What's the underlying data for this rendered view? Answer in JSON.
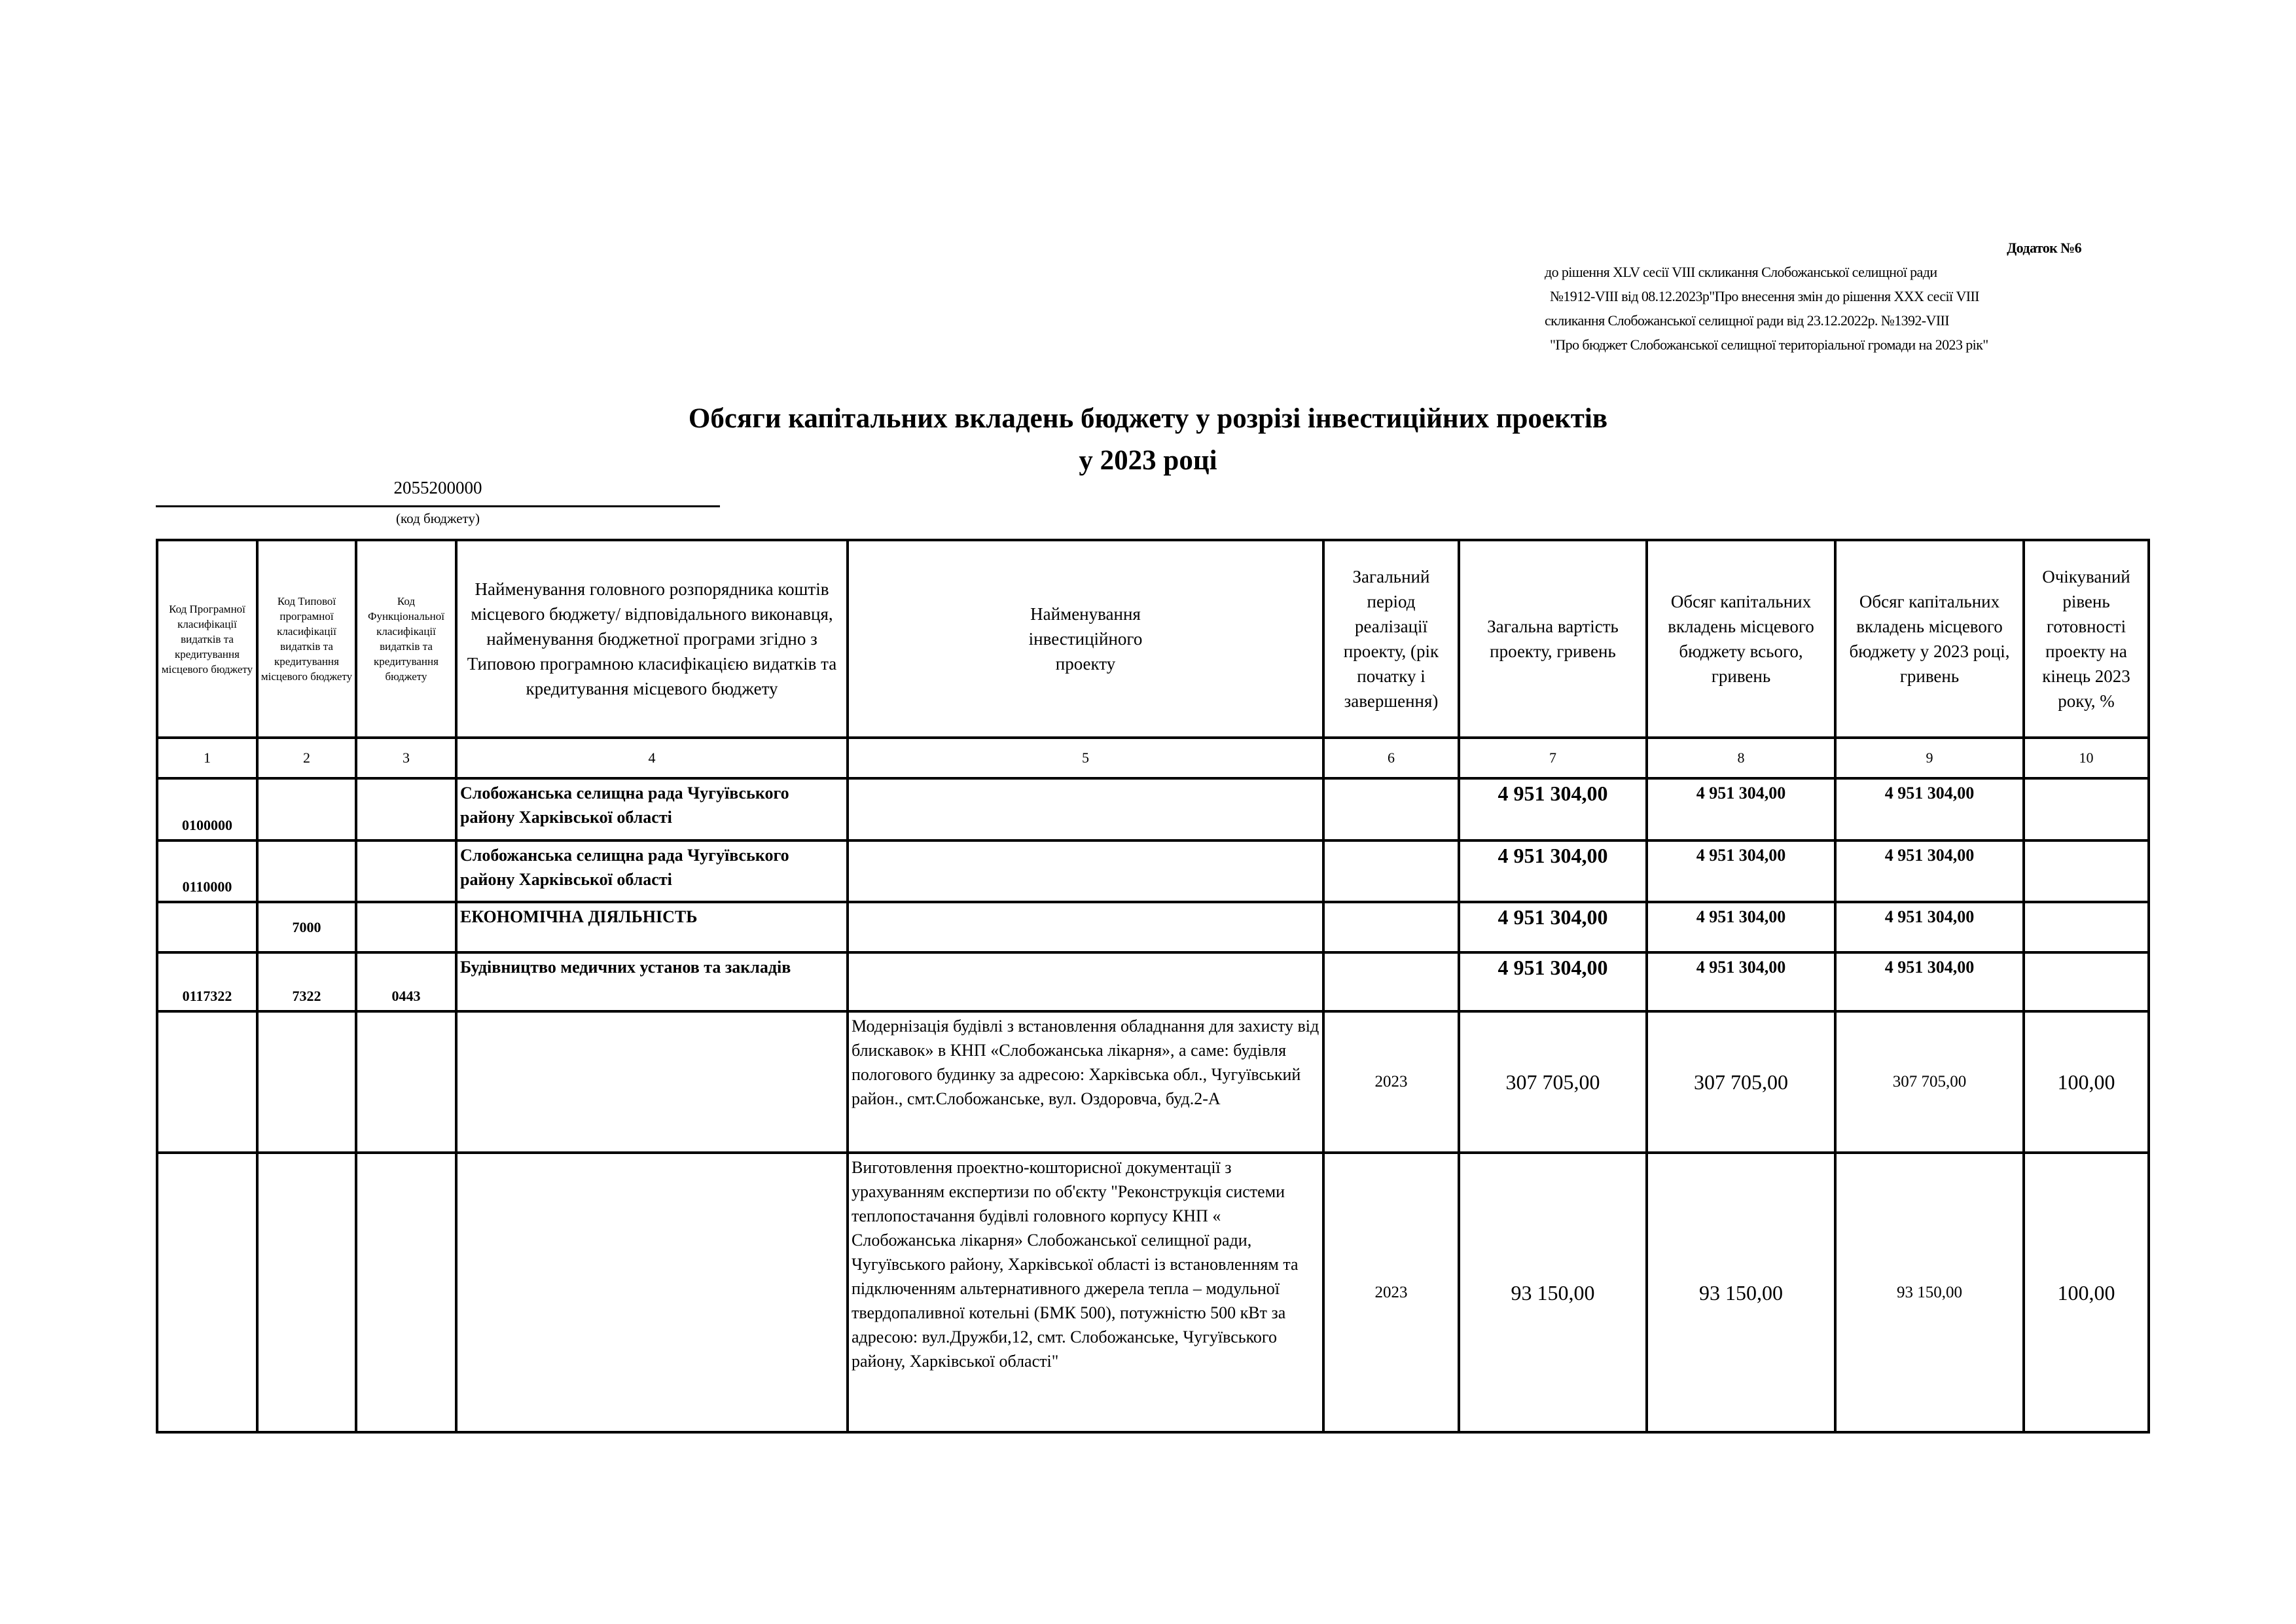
{
  "annex": {
    "title": "Додаток №6",
    "lines": [
      "до рішення  XLV сесії VIII скликання    Слобожанської селищної ради",
      "№1912-VIII від 08.12.2023р\"Про  внесення  змін до рішення XXX сесії  VIII",
      "скликання Слобожанської селищної ради від 23.12.2022р. №1392-VIII",
      "\"Про бюджет Слобожанської селищної територіальної громади на 2023 рік\""
    ]
  },
  "title": [
    "Обсяги капітальних вкладень бюджету у розрізі інвестиційних проектів",
    "у 2023 році"
  ],
  "budget_code": {
    "value": "2055200000",
    "label": "(код бюджету)"
  },
  "table": {
    "headers": [
      "Код Програмної класифікації видатків та кредитування місцевого бюджету",
      "Код Типової програмної класифікації видатків та кредитування місцевого бюджету",
      "Код Функціональної класифікації видатків та кредитування бюджету",
      "Найменування головного розпорядника коштів місцевого бюджету/ відповідального виконавця, найменування бюджетної програми згідно з Типовою програмною класифікацією видатків та кредитування місцевого бюджету",
      "Найменування інвестиційного проекту",
      "Загальний період реалізації проекту, (рік початку і завершення)",
      "Загальна вартість проекту, гривень",
      "Обсяг капітальних вкладень місцевого бюджету всього, гривень",
      "Обсяг капітальних вкладень місцевого бюджету у 2023 році, гривень",
      "Очікуваний рівень готовності проекту на кінець 2023 року, %"
    ],
    "col_numbers": [
      "1",
      "2",
      "3",
      "4",
      "5",
      "6",
      "7",
      "8",
      "9",
      "10"
    ],
    "rows": [
      [
        "0100000",
        "",
        "",
        "Слобожанська селищна рада Чугуївського району Харківської області",
        "",
        "",
        "4 951 304,00",
        "4 951 304,00",
        "4 951 304,00",
        ""
      ],
      [
        "0110000",
        "",
        "",
        "Слобожанська селищна рада Чугуївського району Харківської області",
        "",
        "",
        "4 951 304,00",
        "4 951 304,00",
        "4 951 304,00",
        ""
      ],
      [
        "",
        "7000",
        "",
        "ЕКОНОМІЧНА ДІЯЛЬНІСТЬ",
        "",
        "",
        "4 951 304,00",
        "4 951 304,00",
        "4 951 304,00",
        ""
      ],
      [
        "0117322",
        "7322",
        "0443",
        "Будівництво медичних установ та закладів",
        "",
        "",
        "4 951 304,00",
        "4 951 304,00",
        "4 951 304,00",
        ""
      ],
      [
        "",
        "",
        "",
        "",
        "Модернізація будівлі з встановлення обладнання для захисту від блискавок» в КНП «Слобожанська лікарня», а саме: будівля пологового будинку за адресою: Харківська обл., Чугуївський район., смт.Слобожанське, вул. Оздоровча, буд.2-А",
        "2023",
        "307 705,00",
        "307 705,00",
        "307 705,00",
        "100,00"
      ],
      [
        "",
        "",
        "",
        "",
        "Виготовлення проектно-кошторисної документації з урахуванням експертизи по об'єкту \"Реконструкція системи теплопостачання будівлі головного корпусу КНП « Слобожанська лікарня» Слобожанської селищної ради, Чугуївського району, Харківської області із встановленням та підключенням альтернативного джерела тепла – модульної твердопаливної котельні (БМК 500), потужністю 500 кВт за адресою: вул.Дружби,12, смт. Слобожанське, Чугуївського району, Харківської області\"",
        "2023",
        "93 150,00",
        "93 150,00",
        "93 150,00",
        "100,00"
      ]
    ]
  }
}
